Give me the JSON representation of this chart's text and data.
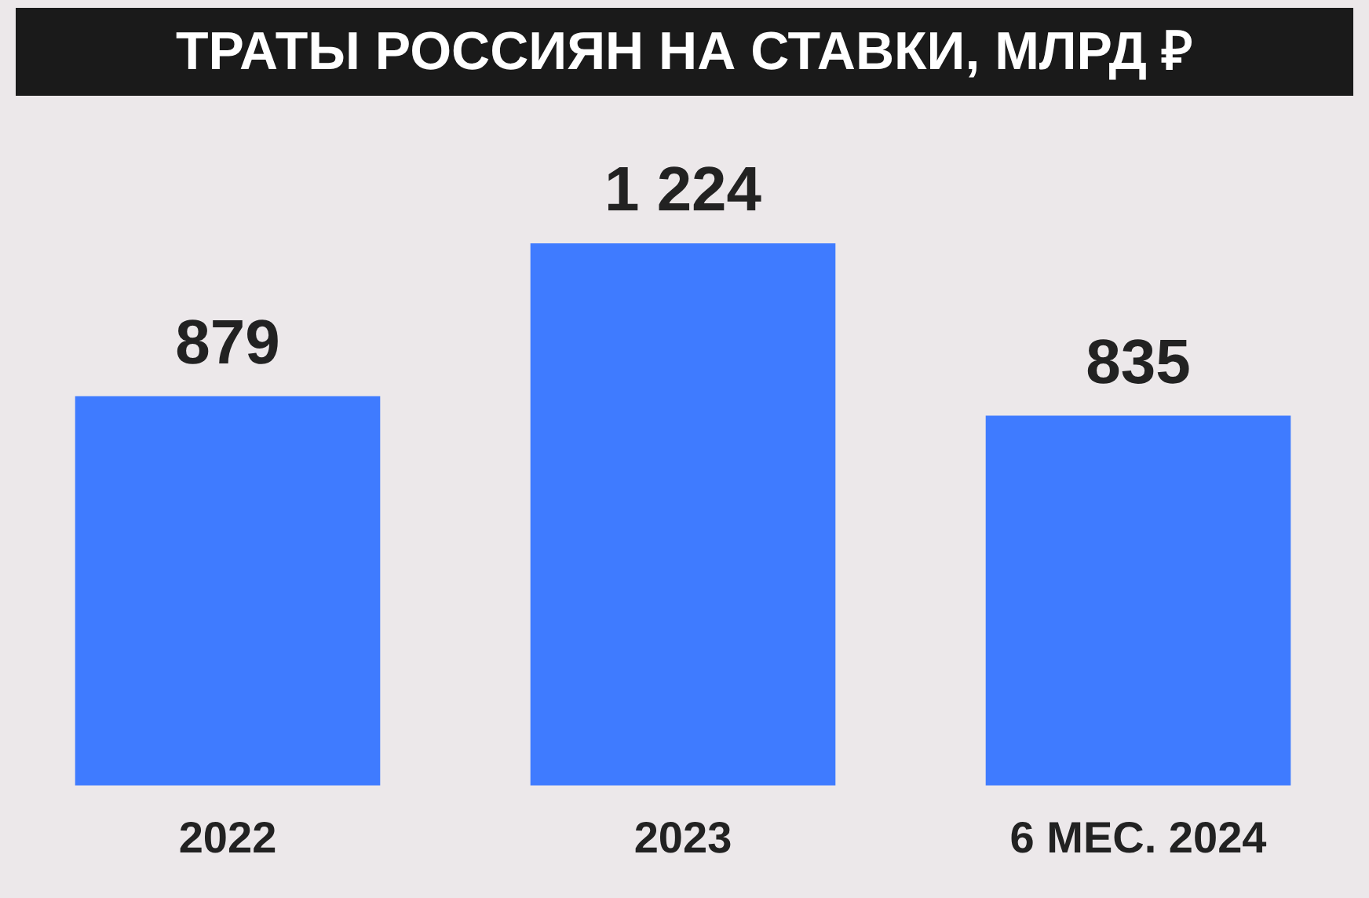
{
  "chart_data": {
    "type": "bar",
    "title": "ТРАТЫ РОССИЯН НА СТАВКИ, МЛРД ₽",
    "categories": [
      "2022",
      "2023",
      "6 МЕС. 2024"
    ],
    "values": [
      879,
      1224,
      835
    ],
    "value_labels": [
      "879",
      "1 224",
      "835"
    ],
    "color": "#3f7bff"
  }
}
